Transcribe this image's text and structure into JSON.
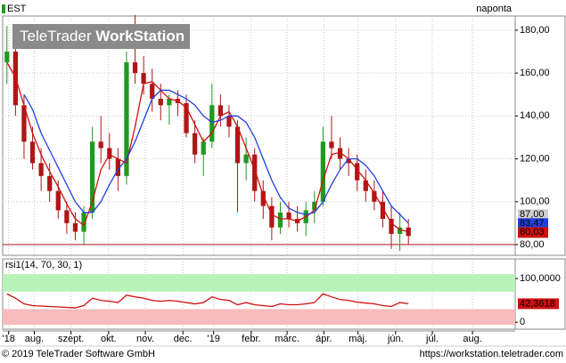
{
  "chart_data": [
    {
      "type": "candlestick",
      "legend": "EST",
      "interval": "naponta",
      "open": [
        165,
        170,
        145,
        128,
        118,
        112,
        105,
        96,
        90,
        86,
        95,
        128,
        125,
        120,
        112,
        165,
        160,
        155,
        148,
        145,
        148,
        146,
        132,
        122,
        128,
        145,
        140,
        135,
        118,
        122,
        105,
        98,
        88,
        95,
        92,
        90,
        96,
        100,
        128,
        125,
        120,
        118,
        110,
        105,
        100,
        92,
        85,
        88
      ],
      "high": [
        182,
        178,
        150,
        135,
        125,
        118,
        110,
        100,
        95,
        98,
        135,
        140,
        132,
        125,
        170,
        187,
        168,
        162,
        155,
        150,
        152,
        150,
        138,
        130,
        155,
        150,
        145,
        138,
        130,
        125,
        110,
        102,
        100,
        100,
        98,
        100,
        105,
        135,
        140,
        130,
        125,
        122,
        115,
        110,
        105,
        98,
        95,
        92
      ],
      "low": [
        155,
        140,
        120,
        115,
        105,
        100,
        92,
        85,
        82,
        80,
        92,
        118,
        115,
        105,
        108,
        155,
        150,
        142,
        138,
        136,
        140,
        130,
        118,
        112,
        125,
        135,
        130,
        95,
        110,
        100,
        92,
        82,
        85,
        88,
        86,
        84,
        90,
        98,
        120,
        115,
        112,
        105,
        100,
        96,
        88,
        78,
        77,
        80
      ],
      "close": [
        170,
        145,
        128,
        118,
        112,
        105,
        96,
        90,
        86,
        95,
        128,
        125,
        120,
        112,
        165,
        160,
        155,
        148,
        145,
        148,
        146,
        132,
        122,
        128,
        145,
        140,
        135,
        118,
        122,
        105,
        98,
        88,
        95,
        92,
        90,
        96,
        100,
        128,
        125,
        120,
        118,
        110,
        105,
        100,
        92,
        85,
        88,
        84
      ],
      "up_color": "#1f9a1f",
      "down_color": "#b01616",
      "overlays": [
        {
          "color": "#d01010",
          "values": [
            165,
            158,
            145,
            132,
            122,
            114,
            107,
            99,
            92,
            89,
            100,
            115,
            122,
            120,
            118,
            135,
            155,
            156,
            152,
            148,
            147,
            144,
            136,
            128,
            132,
            140,
            142,
            135,
            125,
            115,
            103,
            94,
            92,
            92,
            91,
            93,
            96,
            110,
            122,
            123,
            120,
            115,
            110,
            104,
            97,
            90,
            87,
            86
          ]
        },
        {
          "color": "#2040e0",
          "values": [
            null,
            null,
            150,
            143,
            132,
            124,
            116,
            108,
            100,
            95,
            95,
            100,
            108,
            115,
            120,
            128,
            138,
            148,
            152,
            152,
            150,
            148,
            145,
            140,
            137,
            138,
            140,
            140,
            137,
            130,
            120,
            110,
            102,
            97,
            95,
            94,
            95,
            100,
            108,
            115,
            120,
            120,
            117,
            112,
            105,
            98,
            94,
            90
          ]
        }
      ],
      "hline": {
        "value": 80.03,
        "color": "#b01616"
      },
      "price_tags": [
        {
          "value": 87.0,
          "label": "87,00",
          "color": "#d0d0d0"
        },
        {
          "value": 83.47,
          "label": "83,47",
          "color": "#2040e0"
        },
        {
          "value": 80.03,
          "label": "80,03",
          "color": "#d01010"
        }
      ],
      "xlim": [
        -0.5,
        59.5
      ],
      "xticks": [
        {
          "value": 0.2,
          "label": "'18"
        },
        {
          "value": 3.2,
          "label": "aug."
        },
        {
          "value": 7.5,
          "label": "szept."
        },
        {
          "value": 11.9,
          "label": "okt."
        },
        {
          "value": 16.2,
          "label": "nov."
        },
        {
          "value": 20.6,
          "label": "dec."
        },
        {
          "value": 24.2,
          "label": "'19"
        },
        {
          "value": 28.6,
          "label": "febr."
        },
        {
          "value": 32.8,
          "label": "márc."
        },
        {
          "value": 37.1,
          "label": "ápr."
        },
        {
          "value": 41.1,
          "label": "máj."
        },
        {
          "value": 45.5,
          "label": "jún."
        },
        {
          "value": 49.8,
          "label": "júl."
        },
        {
          "value": 54.5,
          "label": "aug."
        }
      ],
      "ylim": [
        75,
        186.6
      ],
      "yticks": [
        {
          "value": 80,
          "label": "80,00"
        },
        {
          "value": 100,
          "label": "100,00"
        },
        {
          "value": 120,
          "label": "120,00"
        },
        {
          "value": 140,
          "label": "140,00"
        },
        {
          "value": 160,
          "label": "160,00"
        },
        {
          "value": 180,
          "label": "180,00"
        }
      ],
      "grid": true
    },
    {
      "type": "line",
      "title": "rsi1(14, 70, 30, 1)",
      "color": "#d01010",
      "values": [
        65,
        55,
        42,
        38,
        37,
        36,
        35,
        34,
        33,
        38,
        55,
        50,
        48,
        45,
        62,
        58,
        55,
        50,
        48,
        50,
        48,
        45,
        42,
        45,
        58,
        52,
        50,
        40,
        45,
        40,
        38,
        36,
        42,
        40,
        40,
        42,
        45,
        65,
        58,
        52,
        50,
        46,
        44,
        42,
        38,
        36,
        45,
        42.3618
      ],
      "last_value_label": "42,3618",
      "bands": [
        {
          "from": 70,
          "to": 110,
          "color": "#b8f2b8"
        },
        {
          "from": -6,
          "to": 30,
          "color": "#f8bcbc"
        }
      ],
      "xlim": [
        -0.5,
        59.5
      ],
      "ylim": [
        -16,
        145
      ],
      "yticks": [
        {
          "value": 100,
          "label": "100,0000"
        },
        0
      ],
      "grid": true
    }
  ],
  "watermark": [
    "TeleTrader",
    "WorkStation"
  ],
  "footer": {
    "left": "© 2019 TeleTrader Software GmbH",
    "right": "https://workstation.teletrader.com"
  }
}
